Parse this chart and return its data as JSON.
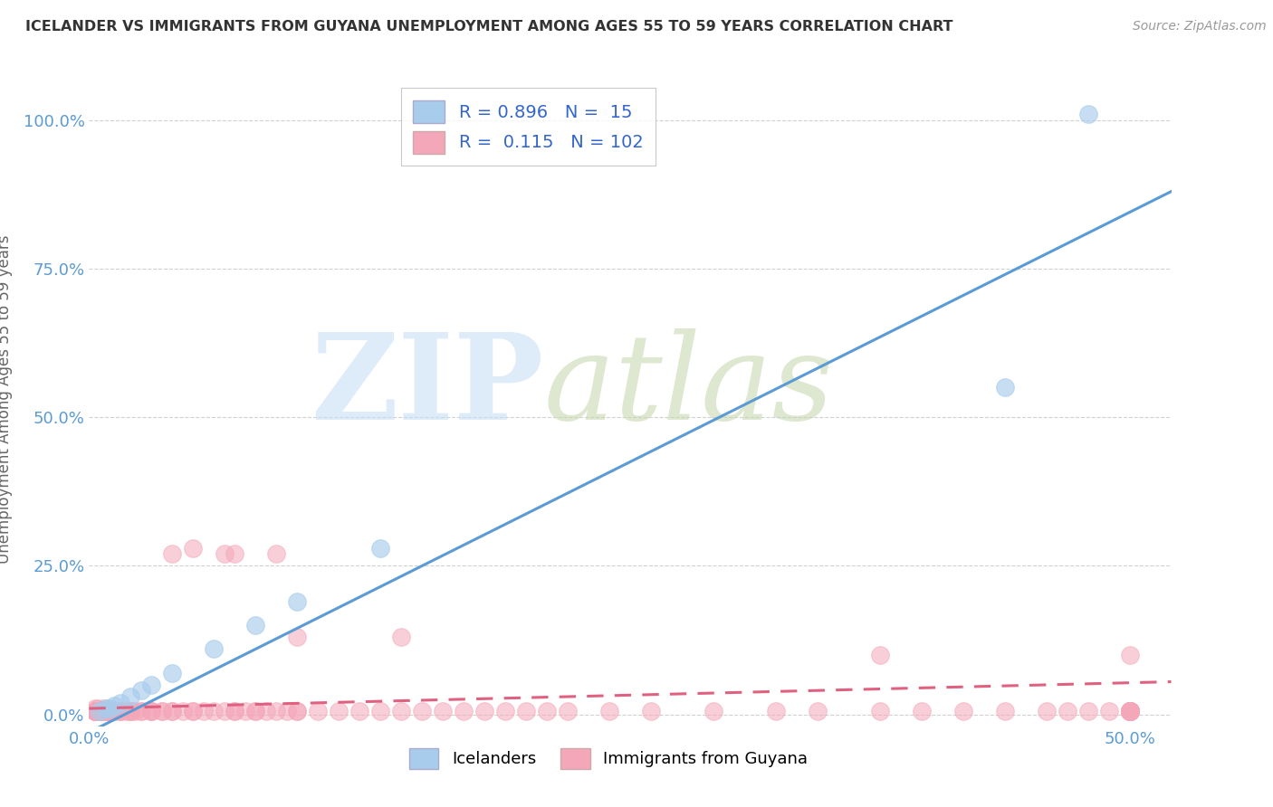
{
  "title": "ICELANDER VS IMMIGRANTS FROM GUYANA UNEMPLOYMENT AMONG AGES 55 TO 59 YEARS CORRELATION CHART",
  "source": "Source: ZipAtlas.com",
  "ylabel": "Unemployment Among Ages 55 to 59 years",
  "xlim": [
    0.0,
    0.52
  ],
  "ylim": [
    -0.02,
    1.08
  ],
  "blue_R": 0.896,
  "blue_N": 15,
  "pink_R": 0.115,
  "pink_N": 102,
  "blue_color": "#a8ccec",
  "pink_color": "#f4a7b9",
  "blue_line_color": "#5b9bd5",
  "pink_line_color": "#e06080",
  "legend_blue_label": "Icelanders",
  "legend_pink_label": "Immigrants from Guyana",
  "blue_scatter_x": [
    0.005,
    0.008,
    0.01,
    0.012,
    0.015,
    0.02,
    0.025,
    0.03,
    0.04,
    0.06,
    0.08,
    0.1,
    0.14,
    0.44,
    0.48
  ],
  "blue_scatter_y": [
    0.005,
    0.01,
    0.01,
    0.015,
    0.02,
    0.03,
    0.04,
    0.05,
    0.07,
    0.11,
    0.15,
    0.19,
    0.28,
    0.55,
    1.01
  ],
  "blue_line_x0": 0.0,
  "blue_line_y0": -0.03,
  "blue_line_x1": 0.52,
  "blue_line_y1": 0.88,
  "pink_line_x0": 0.0,
  "pink_line_y0": 0.01,
  "pink_line_x1": 0.52,
  "pink_line_y1": 0.055,
  "pink_scatter_x": [
    0.003,
    0.003,
    0.003,
    0.003,
    0.003,
    0.003,
    0.003,
    0.004,
    0.004,
    0.005,
    0.005,
    0.005,
    0.005,
    0.006,
    0.007,
    0.007,
    0.007,
    0.008,
    0.008,
    0.008,
    0.009,
    0.009,
    0.01,
    0.01,
    0.01,
    0.01,
    0.01,
    0.012,
    0.012,
    0.015,
    0.015,
    0.015,
    0.018,
    0.02,
    0.02,
    0.02,
    0.022,
    0.025,
    0.025,
    0.03,
    0.03,
    0.03,
    0.035,
    0.035,
    0.04,
    0.04,
    0.045,
    0.05,
    0.05,
    0.055,
    0.06,
    0.065,
    0.07,
    0.07,
    0.075,
    0.08,
    0.08,
    0.085,
    0.09,
    0.095,
    0.1,
    0.1,
    0.11,
    0.12,
    0.13,
    0.14,
    0.15,
    0.16,
    0.17,
    0.18,
    0.19,
    0.2,
    0.21,
    0.22,
    0.23,
    0.25,
    0.27,
    0.3,
    0.33,
    0.35,
    0.38,
    0.4,
    0.42,
    0.44,
    0.46,
    0.47,
    0.48,
    0.49,
    0.5,
    0.5,
    0.5,
    0.5,
    0.5,
    0.5,
    0.5,
    0.5,
    0.5,
    0.5,
    0.5,
    0.5,
    0.5,
    0.5
  ],
  "pink_scatter_y": [
    0.005,
    0.005,
    0.005,
    0.005,
    0.005,
    0.005,
    0.01,
    0.005,
    0.01,
    0.005,
    0.005,
    0.005,
    0.005,
    0.005,
    0.005,
    0.005,
    0.01,
    0.005,
    0.005,
    0.005,
    0.005,
    0.005,
    0.005,
    0.005,
    0.005,
    0.005,
    0.005,
    0.005,
    0.005,
    0.005,
    0.005,
    0.005,
    0.005,
    0.005,
    0.005,
    0.005,
    0.005,
    0.005,
    0.005,
    0.005,
    0.005,
    0.005,
    0.005,
    0.005,
    0.005,
    0.005,
    0.005,
    0.005,
    0.005,
    0.005,
    0.005,
    0.005,
    0.005,
    0.005,
    0.005,
    0.005,
    0.005,
    0.005,
    0.005,
    0.005,
    0.005,
    0.005,
    0.005,
    0.005,
    0.005,
    0.005,
    0.005,
    0.005,
    0.005,
    0.005,
    0.005,
    0.005,
    0.005,
    0.005,
    0.005,
    0.005,
    0.005,
    0.005,
    0.005,
    0.005,
    0.005,
    0.005,
    0.005,
    0.005,
    0.005,
    0.005,
    0.005,
    0.005,
    0.005,
    0.005,
    0.005,
    0.005,
    0.005,
    0.005,
    0.005,
    0.005,
    0.005,
    0.005,
    0.005,
    0.005,
    0.005,
    0.005
  ],
  "pink_outlier_x": [
    0.04,
    0.05,
    0.065,
    0.07,
    0.09,
    0.1,
    0.15,
    0.38,
    0.5
  ],
  "pink_outlier_y": [
    0.27,
    0.28,
    0.27,
    0.27,
    0.27,
    0.13,
    0.13,
    0.1,
    0.1
  ]
}
